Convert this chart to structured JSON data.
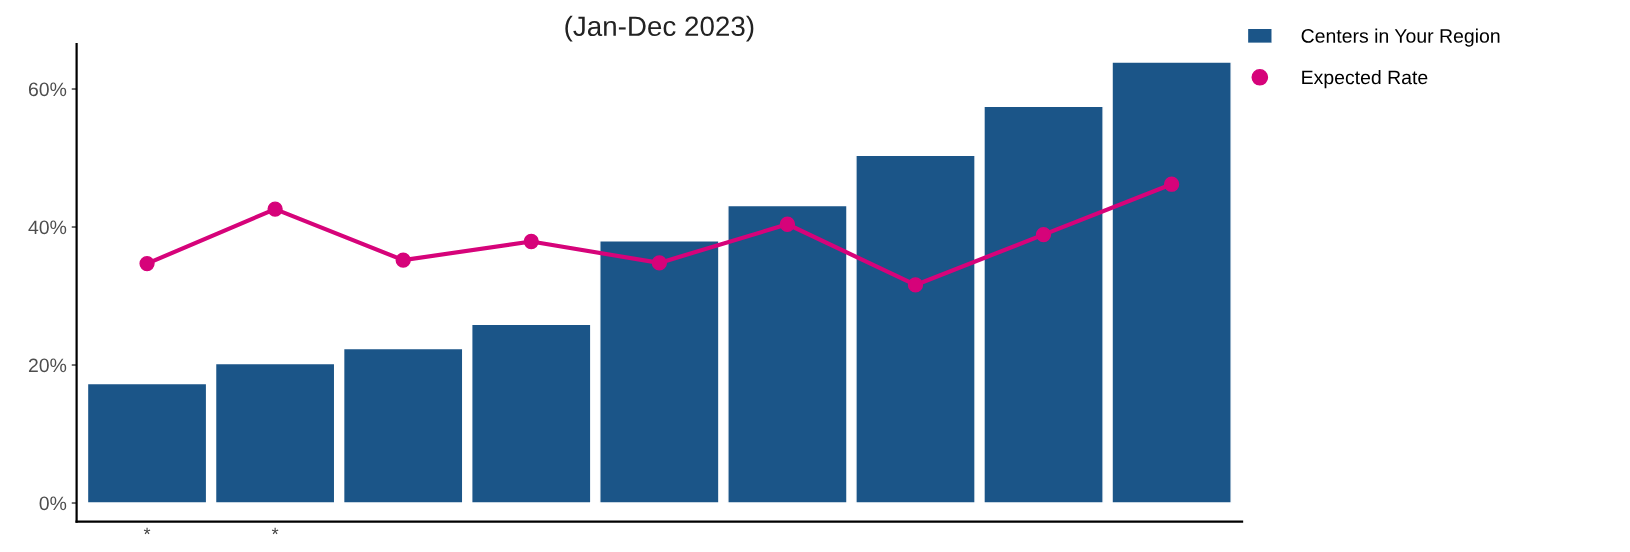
{
  "chart_data": {
    "type": "bar",
    "title": "(Jan-Dec 2023)",
    "categories": [
      "*",
      "*",
      null,
      null,
      null,
      null,
      null,
      null,
      null
    ],
    "series": [
      {
        "name": "Centers in Your Region",
        "color": "#1b5588",
        "values": [
          17.3,
          20.2,
          22.4,
          25.9,
          38.0,
          43.1,
          50.4,
          57.5,
          63.9
        ]
      },
      {
        "name": "Expected Rate",
        "type": "line",
        "color": "#d6037a",
        "marker": "circle",
        "values": [
          34.7,
          42.6,
          35.2,
          37.9,
          34.8,
          40.4,
          31.6,
          38.9,
          46.2
        ]
      }
    ],
    "ylim": [
      -2.7,
      66.5
    ],
    "yticks": [
      {
        "value": 0,
        "label": "0%"
      },
      {
        "value": 20,
        "label": "20%"
      },
      {
        "value": 40,
        "label": "40%"
      },
      {
        "value": 60,
        "label": "60%"
      }
    ],
    "grid": false,
    "legend": "top right"
  }
}
